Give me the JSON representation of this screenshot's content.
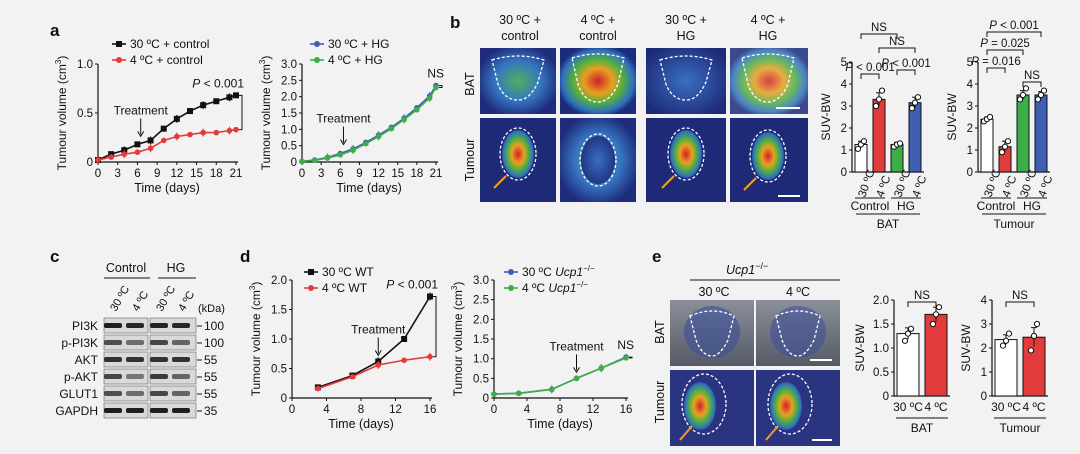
{
  "panel_letters": {
    "a": "a",
    "b": "b",
    "c": "c",
    "d": "d",
    "e": "e"
  },
  "panel_b": {
    "columns": [
      [
        "30 ºC +",
        "control"
      ],
      [
        "4 ºC +",
        "control"
      ],
      [
        "30 ºC +",
        "HG"
      ],
      [
        "4 ºC +",
        "HG"
      ]
    ],
    "row_labels": [
      "BAT",
      "Tumour"
    ]
  },
  "panel_c": {
    "groups": [
      "Control",
      "HG"
    ],
    "lanes": [
      "30 ºC",
      "4 ºC",
      "30 ºC",
      "4 ºC"
    ],
    "kda_label": "(kDa)",
    "proteins": [
      {
        "name": "PI3K",
        "kda": "100"
      },
      {
        "name": "p-PI3K",
        "kda": "100"
      },
      {
        "name": "AKT",
        "kda": "55"
      },
      {
        "name": "p-AKT",
        "kda": "55"
      },
      {
        "name": "GLUT1",
        "kda": "55"
      },
      {
        "name": "GAPDH",
        "kda": "35"
      }
    ]
  },
  "panel_e": {
    "title": "Ucp1",
    "title_sup": "−/−",
    "columns": [
      "30 ºC",
      "4 ºC"
    ],
    "row_labels": [
      "BAT",
      "Tumour"
    ]
  },
  "colors": {
    "black": "#111111",
    "red": "#e23b3b",
    "blue": "#3f5fb5",
    "green": "#3cae48",
    "white": "#ffffff"
  },
  "chart_data": [
    {
      "id": "a1",
      "type": "line",
      "ylabel": "Tumour volume (cm³)",
      "xlabel": "Time (days)",
      "xlim": [
        0,
        21
      ],
      "ylim": [
        0,
        1
      ],
      "x_ticks": [
        0,
        3,
        6,
        9,
        12,
        15,
        18,
        21
      ],
      "y_ticks": [
        0,
        0.5,
        1
      ],
      "y_tick_labels": [
        "0",
        "0.5",
        "1.0"
      ],
      "series": [
        {
          "name": "30 ºC + control",
          "color": "#111111",
          "marker": "square",
          "x": [
            0,
            2,
            4,
            6,
            8,
            10,
            12,
            14,
            16,
            18,
            20,
            21
          ],
          "y": [
            0.02,
            0.08,
            0.12,
            0.18,
            0.22,
            0.34,
            0.44,
            0.52,
            0.58,
            0.62,
            0.66,
            0.68
          ]
        },
        {
          "name": "4 ºC + control",
          "color": "#e23b3b",
          "marker": "dot",
          "x": [
            0,
            2,
            4,
            6,
            8,
            10,
            12,
            14,
            16,
            18,
            20,
            21
          ],
          "y": [
            0.02,
            0.05,
            0.08,
            0.1,
            0.14,
            0.22,
            0.26,
            0.28,
            0.3,
            0.3,
            0.32,
            0.33
          ]
        }
      ],
      "annotations": [
        {
          "text": "Treatment",
          "at_x": 6.5,
          "at_y": 0.2
        },
        {
          "text": "P < 0.001",
          "at_x": 21
        }
      ]
    },
    {
      "id": "a2",
      "type": "line",
      "ylabel": "Tumour volume (cm³)",
      "xlabel": "Time (days)",
      "xlim": [
        0,
        21
      ],
      "ylim": [
        0,
        3
      ],
      "x_ticks": [
        0,
        3,
        6,
        9,
        12,
        15,
        18,
        21
      ],
      "y_ticks": [
        0,
        0.5,
        1,
        1.5,
        2,
        2.5,
        3
      ],
      "y_tick_labels": [
        "0",
        "0.5",
        "1.0",
        "1.5",
        "2.0",
        "2.5",
        "3.0"
      ],
      "series": [
        {
          "name": "30 ºC + HG",
          "color": "#3f5fb5",
          "marker": "dot",
          "x": [
            0,
            2,
            4,
            6,
            8,
            10,
            12,
            14,
            16,
            18,
            20,
            21
          ],
          "y": [
            0.02,
            0.06,
            0.14,
            0.26,
            0.4,
            0.6,
            0.82,
            1.06,
            1.34,
            1.66,
            2.02,
            2.34
          ]
        },
        {
          "name": "4 ºC + HG",
          "color": "#3cae48",
          "marker": "dot",
          "x": [
            0,
            2,
            4,
            6,
            8,
            10,
            12,
            14,
            16,
            18,
            20,
            21
          ],
          "y": [
            0.02,
            0.05,
            0.12,
            0.22,
            0.36,
            0.56,
            0.78,
            1.02,
            1.3,
            1.6,
            1.96,
            2.28
          ]
        }
      ],
      "annotations": [
        {
          "text": "Treatment",
          "at_x": 6.5,
          "at_y": 0.35
        },
        {
          "text": "NS",
          "at_x": 21
        }
      ]
    },
    {
      "id": "b_bat",
      "type": "bar",
      "ylabel": "SUV-BW",
      "ylim": [
        0,
        5
      ],
      "y_ticks": [
        0,
        1,
        2,
        3,
        4,
        5
      ],
      "categories": [
        "30 ºC",
        "4 ºC",
        "30 ºC",
        "4 ºC"
      ],
      "groups": [
        "Control",
        "HG"
      ],
      "group_caption": "BAT",
      "values": [
        1.25,
        3.3,
        1.25,
        3.15
      ],
      "errors": [
        0.15,
        0.3,
        0.1,
        0.25
      ],
      "colors": [
        "#ffffff",
        "#e23b3b",
        "#3cae48",
        "#3f5fb5"
      ],
      "points": [
        [
          1.05,
          1.25,
          1.4
        ],
        [
          3.0,
          3.3,
          3.7
        ],
        [
          1.15,
          1.25,
          1.3
        ],
        [
          2.9,
          3.15,
          3.4
        ]
      ],
      "annotations": [
        "P < 0.001",
        "P < 0.001",
        "NS",
        "NS"
      ]
    },
    {
      "id": "b_tum",
      "type": "bar",
      "ylabel": "SUV-BW",
      "ylim": [
        0,
        5
      ],
      "y_ticks": [
        0,
        1,
        2,
        3,
        4,
        5
      ],
      "categories": [
        "30 ºC",
        "4 ºC",
        "30 ºC",
        "4 ºC"
      ],
      "groups": [
        "Control",
        "HG"
      ],
      "group_caption": "Tumour",
      "values": [
        2.4,
        1.15,
        3.5,
        3.5
      ],
      "errors": [
        0.1,
        0.25,
        0.2,
        0.15
      ],
      "colors": [
        "#ffffff",
        "#e23b3b",
        "#3cae48",
        "#3f5fb5"
      ],
      "points": [
        [
          2.3,
          2.4,
          2.5
        ],
        [
          0.9,
          1.15,
          1.4
        ],
        [
          3.3,
          3.5,
          3.8
        ],
        [
          3.3,
          3.5,
          3.7
        ]
      ],
      "annotations": [
        "P = 0.016",
        "P = 0.025",
        "P < 0.001",
        "NS"
      ]
    },
    {
      "id": "d1",
      "type": "line",
      "ylabel": "Tumour volume (cm³)",
      "xlabel": "Time (days)",
      "xlim": [
        0,
        16
      ],
      "ylim": [
        0,
        2
      ],
      "x_ticks": [
        0,
        4,
        8,
        12,
        16
      ],
      "y_ticks": [
        0,
        0.5,
        1,
        1.5,
        2
      ],
      "y_tick_labels": [
        "0",
        "0.5",
        "1.0",
        "1.5",
        "2.0"
      ],
      "series": [
        {
          "name": "30 ºC WT",
          "color": "#111111",
          "marker": "square",
          "x": [
            3,
            7,
            10,
            13,
            16
          ],
          "y": [
            0.18,
            0.38,
            0.62,
            1.0,
            1.72
          ]
        },
        {
          "name": "4 ºC WT",
          "color": "#e23b3b",
          "marker": "dot",
          "x": [
            3,
            7,
            10,
            13,
            16
          ],
          "y": [
            0.16,
            0.36,
            0.56,
            0.64,
            0.7
          ]
        }
      ],
      "annotations": [
        {
          "text": "Treatment",
          "at_x": 10,
          "at_y": 0.62
        },
        {
          "text": "P < 0.001",
          "at_x": 16
        }
      ]
    },
    {
      "id": "d2",
      "type": "line",
      "ylabel": "Tumour volume (cm³)",
      "xlabel": "Time (days)",
      "xlim": [
        0,
        16
      ],
      "ylim": [
        0,
        3
      ],
      "x_ticks": [
        0,
        4,
        8,
        12,
        16
      ],
      "y_ticks": [
        0,
        0.5,
        1,
        1.5,
        2,
        2.5,
        3
      ],
      "y_tick_labels": [
        "0",
        "0.5",
        "1.0",
        "1.5",
        "2.0",
        "2.5",
        "3.0"
      ],
      "series": [
        {
          "name": "30 ºC Ucp1",
          "sup": "−/−",
          "color": "#3f5fb5",
          "marker": "dot",
          "x": [
            0,
            3,
            7,
            10,
            13,
            16
          ],
          "y": [
            0.1,
            0.12,
            0.22,
            0.5,
            0.76,
            1.04
          ]
        },
        {
          "name": "4 ºC Ucp1",
          "sup": "−/−",
          "color": "#3cae48",
          "marker": "dot",
          "x": [
            0,
            3,
            7,
            10,
            13,
            16
          ],
          "y": [
            0.1,
            0.12,
            0.22,
            0.5,
            0.76,
            1.02
          ]
        }
      ],
      "annotations": [
        {
          "text": "Treatment",
          "at_x": 10,
          "at_y": 0.5
        },
        {
          "text": "NS",
          "at_x": 16
        }
      ]
    },
    {
      "id": "e_bat",
      "type": "bar",
      "ylabel": "SUV-BW",
      "ylim": [
        0,
        2
      ],
      "y_ticks": [
        0,
        0.5,
        1,
        1.5,
        2
      ],
      "y_tick_labels": [
        "0",
        "0.5",
        "1.0",
        "1.5",
        "2.0"
      ],
      "categories": [
        "30 ºC",
        "4 ºC"
      ],
      "group_caption": "BAT",
      "values": [
        1.3,
        1.7
      ],
      "errors": [
        0.12,
        0.15
      ],
      "colors": [
        "#ffffff",
        "#e23b3b"
      ],
      "points": [
        [
          1.15,
          1.3,
          1.4
        ],
        [
          1.5,
          1.7,
          1.85
        ]
      ],
      "annotations": [
        "NS"
      ]
    },
    {
      "id": "e_tum",
      "type": "bar",
      "ylabel": "SUV-BW",
      "ylim": [
        0,
        4
      ],
      "y_ticks": [
        0,
        1,
        2,
        3,
        4
      ],
      "categories": [
        "30 ºC",
        "4 ºC"
      ],
      "group_caption": "Tumour",
      "values": [
        2.35,
        2.45
      ],
      "errors": [
        0.2,
        0.4
      ],
      "colors": [
        "#ffffff",
        "#e23b3b"
      ],
      "points": [
        [
          2.1,
          2.3,
          2.6
        ],
        [
          1.9,
          2.5,
          3.0
        ]
      ],
      "annotations": [
        "NS"
      ]
    }
  ]
}
